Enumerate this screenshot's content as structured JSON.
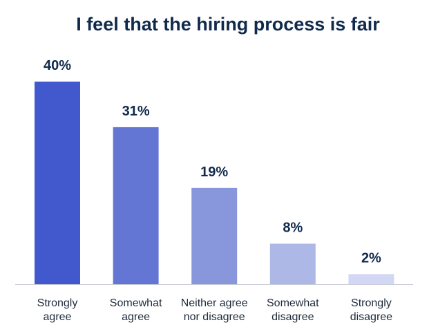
{
  "chart_data": {
    "type": "bar",
    "title": "I feel that the hiring process is fair",
    "categories": [
      [
        "Strongly",
        "agree"
      ],
      [
        "Somewhat",
        "agree"
      ],
      [
        "Neither agree",
        "nor disagree"
      ],
      [
        "Somewhat",
        "disagree"
      ],
      [
        "Strongly",
        "disagree"
      ]
    ],
    "values": [
      40,
      31,
      19,
      8,
      2
    ],
    "data_labels": [
      "40%",
      "31%",
      "19%",
      "8%",
      "2%"
    ],
    "colors": [
      "#4159cc",
      "#6476d4",
      "#8897dc",
      "#adb8e7",
      "#d2d8f3"
    ],
    "ylim": [
      0,
      40
    ],
    "grid": false,
    "xlabel": "",
    "ylabel": ""
  }
}
